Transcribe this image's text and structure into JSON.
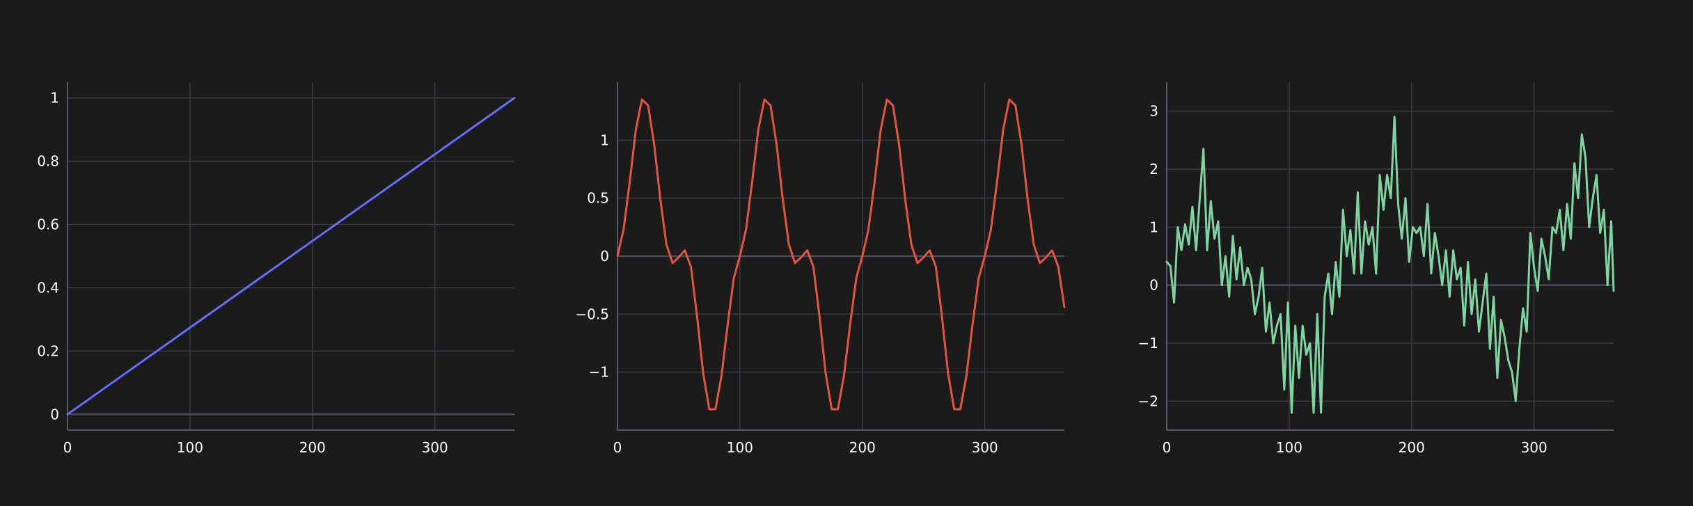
{
  "figure": {
    "background": "#1b1b1b",
    "grid_color": "#3a3a44",
    "tick_color": "#ffffff"
  },
  "chart_data": [
    {
      "type": "line",
      "title": "",
      "xlabel": "",
      "ylabel": "",
      "grid": true,
      "color": "#636efa",
      "xlim": [
        0,
        365
      ],
      "ylim": [
        -0.05,
        1.05
      ],
      "xticks": [
        0,
        100,
        200,
        300
      ],
      "yticks": [
        0,
        0.2,
        0.4,
        0.6,
        0.8,
        1
      ],
      "ytick_labels": [
        "0",
        "0.2",
        "0.4",
        "0.6",
        "0.8",
        "1"
      ],
      "series": [
        {
          "x": [
            0,
            365
          ],
          "y": [
            0,
            1
          ]
        }
      ]
    },
    {
      "type": "line",
      "title": "",
      "xlabel": "",
      "ylabel": "",
      "grid": true,
      "color": "#e1563f",
      "xlim": [
        0,
        365
      ],
      "ylim": [
        -1.5,
        1.5
      ],
      "xticks": [
        0,
        100,
        200,
        300
      ],
      "yticks": [
        -1,
        -0.5,
        0,
        0.5,
        1
      ],
      "ytick_labels": [
        "−1",
        "−0.5",
        "0",
        "0.5",
        "1"
      ],
      "series": [
        {
          "x": [
            0,
            5,
            10,
            15,
            20,
            25,
            30,
            35,
            40,
            45,
            50,
            55,
            60,
            65,
            70,
            75,
            80,
            85,
            90,
            95,
            100,
            105,
            110,
            115,
            120,
            125,
            130,
            135,
            140,
            145,
            150,
            155,
            160,
            165,
            170,
            175,
            180,
            185,
            190,
            195,
            200,
            205,
            210,
            215,
            220,
            225,
            230,
            235,
            240,
            245,
            250,
            255,
            260,
            265,
            270,
            275,
            280,
            285,
            290,
            295,
            300,
            305,
            310,
            315,
            320,
            325,
            330,
            335,
            340,
            345,
            350,
            355,
            360,
            365
          ],
          "y": [
            0,
            0.23,
            0.64,
            1.09,
            1.35,
            1.3,
            0.96,
            0.49,
            0.1,
            -0.06,
            -0.01,
            0.05,
            -0.09,
            -0.52,
            -1.01,
            -1.32,
            -1.32,
            -1.03,
            -0.59,
            -0.19,
            0,
            0.23,
            0.64,
            1.09,
            1.35,
            1.3,
            0.96,
            0.49,
            0.1,
            -0.06,
            -0.01,
            0.05,
            -0.09,
            -0.52,
            -1.01,
            -1.32,
            -1.32,
            -1.03,
            -0.59,
            -0.19,
            0,
            0.23,
            0.64,
            1.09,
            1.35,
            1.3,
            0.96,
            0.49,
            0.1,
            -0.06,
            -0.01,
            0.05,
            -0.09,
            -0.52,
            -1.01,
            -1.32,
            -1.32,
            -1.03,
            -0.59,
            -0.19,
            0,
            0.23,
            0.64,
            1.09,
            1.35,
            1.3,
            0.96,
            0.49,
            0.1,
            -0.06,
            -0.01,
            0.05,
            -0.09,
            -0.44
          ]
        }
      ]
    },
    {
      "type": "line",
      "title": "",
      "xlabel": "",
      "ylabel": "",
      "grid": true,
      "color": "#7fd4a1",
      "xlim": [
        0,
        365
      ],
      "ylim": [
        -2.5,
        3.5
      ],
      "xticks": [
        0,
        100,
        200,
        300
      ],
      "yticks": [
        -2,
        -1,
        0,
        1,
        2,
        3
      ],
      "ytick_labels": [
        "−2",
        "−1",
        "0",
        "1",
        "2",
        "3"
      ],
      "series": [
        {
          "x": [
            0,
            3,
            6,
            9,
            12,
            15,
            18,
            21,
            24,
            27,
            30,
            33,
            36,
            39,
            42,
            45,
            48,
            51,
            54,
            57,
            60,
            63,
            66,
            69,
            72,
            75,
            78,
            81,
            84,
            87,
            90,
            93,
            96,
            99,
            102,
            105,
            108,
            111,
            114,
            117,
            120,
            123,
            126,
            129,
            132,
            135,
            138,
            141,
            144,
            147,
            150,
            153,
            156,
            159,
            162,
            165,
            168,
            171,
            174,
            177,
            180,
            183,
            186,
            189,
            192,
            195,
            198,
            201,
            204,
            207,
            210,
            213,
            216,
            219,
            222,
            225,
            228,
            231,
            234,
            237,
            240,
            243,
            246,
            249,
            252,
            255,
            258,
            261,
            264,
            267,
            270,
            273,
            276,
            279,
            282,
            285,
            288,
            291,
            294,
            297,
            300,
            303,
            306,
            309,
            312,
            315,
            318,
            321,
            324,
            327,
            330,
            333,
            336,
            339,
            342,
            345,
            348,
            351,
            354,
            357,
            360,
            363,
            365
          ],
          "y": [
            0.4,
            0.33,
            -0.3,
            1.0,
            0.6,
            1.05,
            0.7,
            1.35,
            0.6,
            1.5,
            2.35,
            0.6,
            1.45,
            0.8,
            1.1,
            0.0,
            0.5,
            -0.2,
            0.85,
            0.1,
            0.65,
            0.0,
            0.3,
            0.1,
            -0.5,
            -0.2,
            0.3,
            -0.8,
            -0.3,
            -1.0,
            -0.7,
            -0.5,
            -1.8,
            -0.3,
            -2.2,
            -0.7,
            -1.6,
            -0.7,
            -1.2,
            -1.0,
            -2.2,
            -0.5,
            -2.2,
            -0.2,
            0.2,
            -0.5,
            0.4,
            -0.2,
            1.3,
            0.5,
            0.95,
            0.2,
            1.6,
            0.2,
            1.1,
            0.7,
            1.0,
            0.2,
            1.9,
            1.3,
            1.9,
            1.5,
            2.9,
            1.4,
            0.8,
            1.5,
            0.4,
            1.0,
            0.9,
            1.0,
            0.5,
            1.4,
            0.2,
            0.9,
            0.5,
            0.0,
            0.6,
            -0.2,
            0.6,
            0.1,
            0.3,
            -0.7,
            0.4,
            -0.5,
            0.1,
            -0.8,
            -0.3,
            0.2,
            -1.1,
            -0.2,
            -1.6,
            -0.6,
            -0.9,
            -1.3,
            -1.5,
            -2.0,
            -1.1,
            -0.4,
            -0.8,
            0.9,
            0.3,
            -0.1,
            0.8,
            0.5,
            0.1,
            1.0,
            0.9,
            1.3,
            0.6,
            1.4,
            0.8,
            2.1,
            1.5,
            2.6,
            2.2,
            1.0,
            1.5,
            1.9,
            0.9,
            1.3,
            0.0,
            1.1,
            -0.1
          ]
        }
      ]
    }
  ]
}
